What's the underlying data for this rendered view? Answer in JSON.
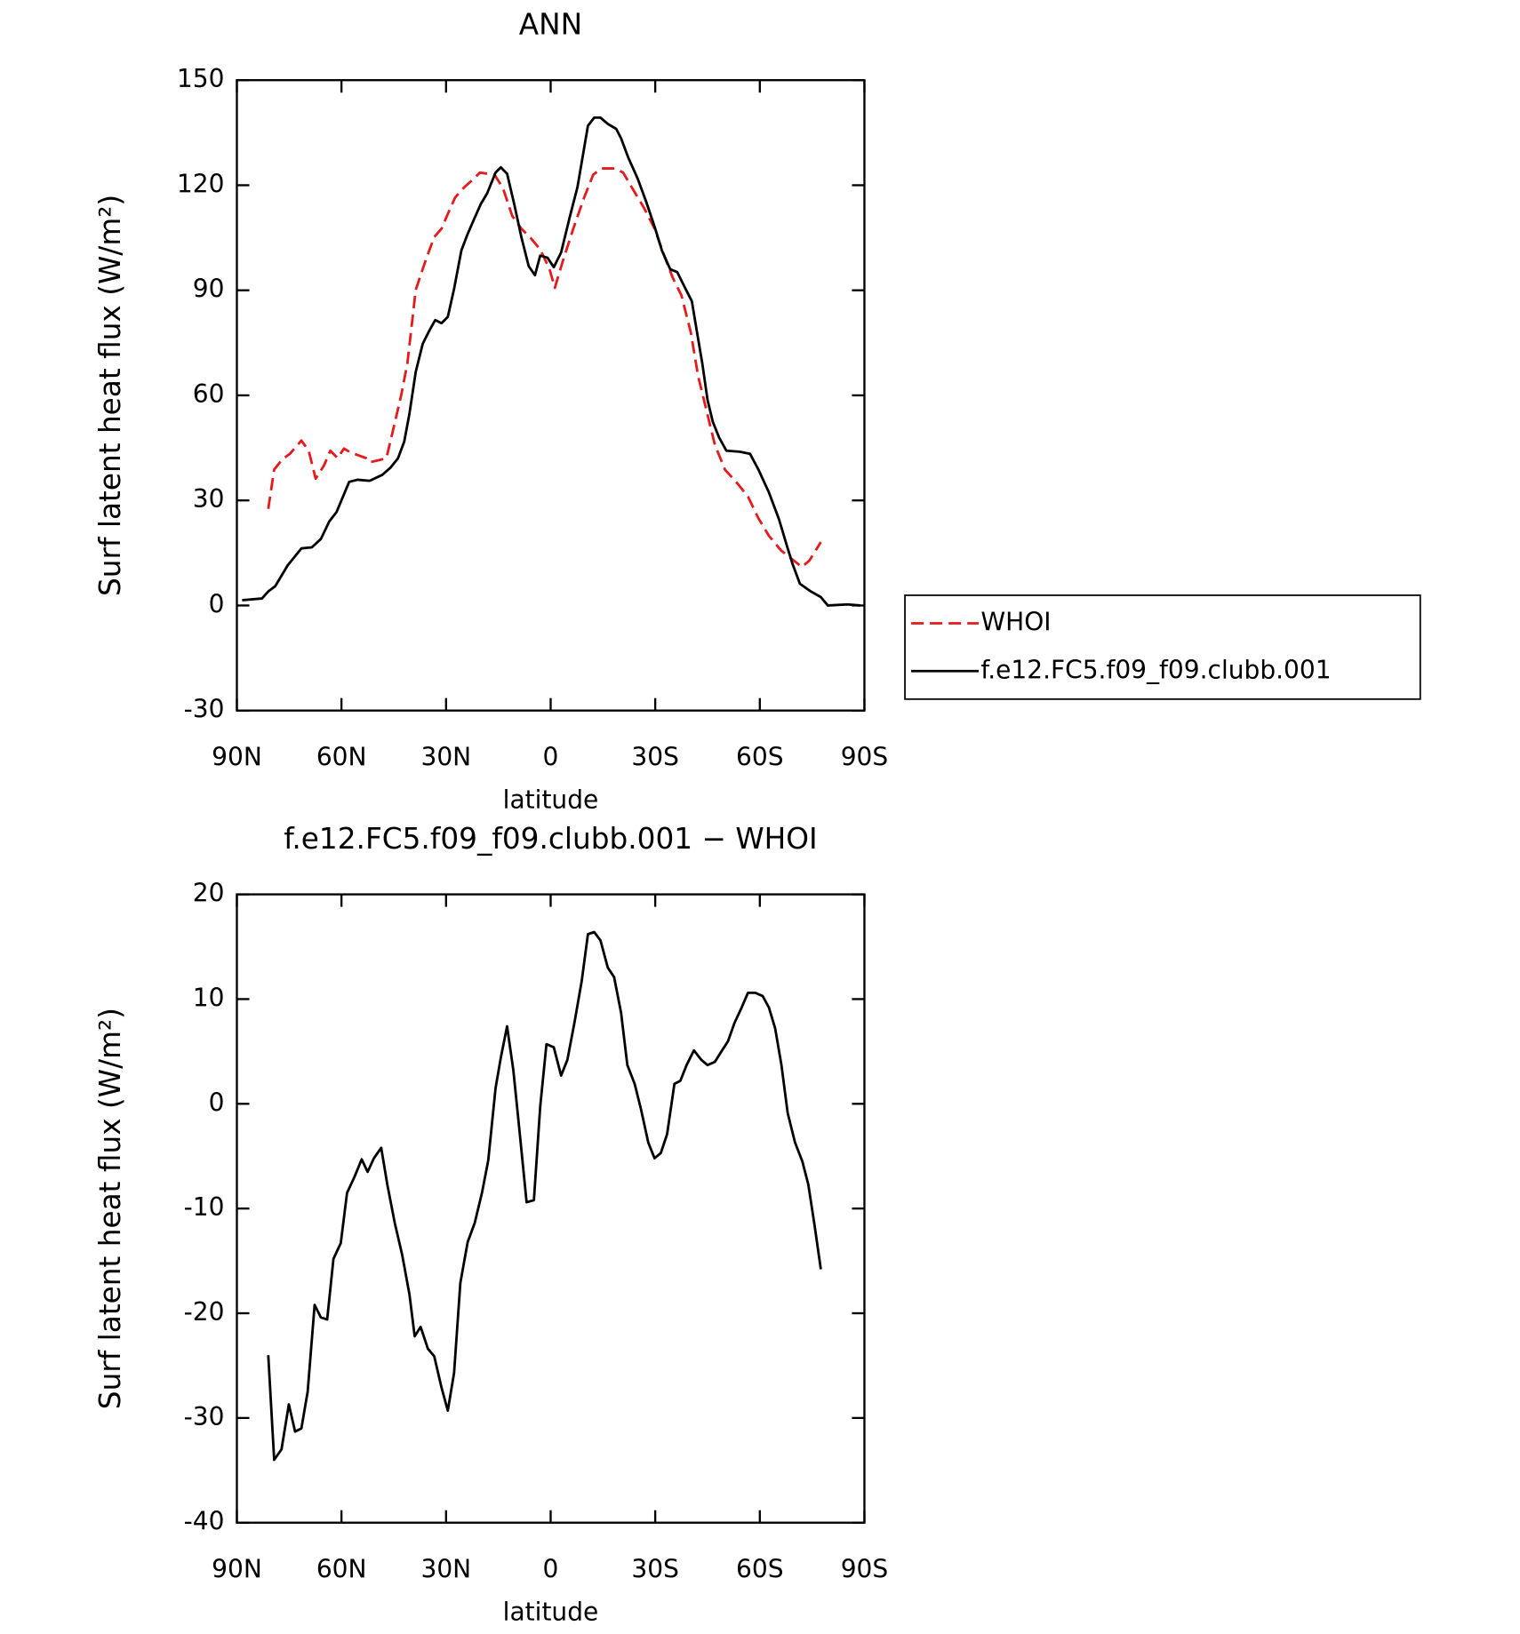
{
  "chart_data": [
    {
      "type": "line",
      "title": "ANN",
      "xlabel": "latitude",
      "ylabel": "Surf latent heat flux (W/m²)",
      "xlim": [
        90,
        -90
      ],
      "xticks": [
        {
          "value": 90,
          "label": "90N"
        },
        {
          "value": 60,
          "label": "60N"
        },
        {
          "value": 30,
          "label": "30N"
        },
        0,
        {
          "value": -30,
          "label": "30S"
        },
        {
          "value": -60,
          "label": "60S"
        },
        {
          "value": -90,
          "label": "90S"
        }
      ],
      "ylim": [
        -30,
        150
      ],
      "yticks": [
        -30,
        0,
        30,
        60,
        90,
        120,
        150
      ],
      "legend": "right",
      "series": [
        {
          "name": "WHOI",
          "color": "#e41a1c",
          "dashed": true,
          "x": [
            81,
            79.3,
            76.9,
            74.8,
            71.5,
            69.4,
            67.4,
            65,
            63.2,
            61.1,
            59.3,
            57.2,
            53,
            51.9,
            49.2,
            47.1,
            44.7,
            42.9,
            41.1,
            38.7,
            35.8,
            33.4,
            31.3,
            29.5,
            27.4,
            24.7,
            22.1,
            20.3,
            16.1,
            13.7,
            11,
            8.4,
            5.7,
            3,
            0.3,
            -1.2,
            -3.6,
            -6.5,
            -9.5,
            -12.2,
            -14.6,
            -18.5,
            -20.8,
            -23.2,
            -26.8,
            -29.8,
            -32.8,
            -35.1,
            -37.5,
            -40.2,
            -42.3,
            -44.7,
            -47.1,
            -50,
            -53.6,
            -56.6,
            -59.6,
            -62.6,
            -66.1,
            -69.1,
            -72.1,
            -74.2,
            -77.5
          ],
          "values": [
            27.6,
            38.8,
            41.8,
            43.3,
            47.1,
            44.2,
            36.2,
            40,
            44.2,
            42.1,
            44.8,
            43.6,
            42.1,
            40.9,
            41.5,
            42.1,
            52.2,
            59.9,
            69.1,
            90.1,
            98.7,
            105.2,
            107.6,
            111.8,
            116.5,
            119.5,
            121.8,
            123.6,
            123,
            119.2,
            111.2,
            107.6,
            104.9,
            101.7,
            96,
            90.7,
            98.7,
            107.6,
            116.2,
            123,
            124.8,
            124.8,
            123.6,
            119.5,
            113.5,
            107.6,
            99.3,
            93.4,
            88.6,
            78,
            65.5,
            55.7,
            45.9,
            38.8,
            34.8,
            31.1,
            24.9,
            19.9,
            15.7,
            13.3,
            11,
            12.8,
            18.1
          ]
        },
        {
          "name": "f.e12.FC5.f09_f09.clubb.001",
          "color": "#000000",
          "dashed": false,
          "x": [
            88.5,
            82.8,
            81,
            79,
            75.4,
            71.5,
            68.5,
            65.9,
            63.5,
            61.4,
            57.8,
            55.4,
            51.9,
            48.3,
            45.9,
            43.8,
            42,
            40.5,
            38.7,
            36.7,
            34.9,
            33.1,
            31.3,
            29.5,
            27.7,
            25.6,
            23.8,
            22.1,
            20,
            18.2,
            15.8,
            14.3,
            12.5,
            10.4,
            8.4,
            6.3,
            4.5,
            3,
            0.9,
            -0.9,
            -3,
            -5.4,
            -7.7,
            -10.7,
            -12.5,
            -14.3,
            -16.4,
            -18.8,
            -20.2,
            -22.3,
            -25,
            -27.4,
            -29.8,
            -31.9,
            -34.3,
            -36.3,
            -38.7,
            -40.5,
            -41.7,
            -43.5,
            -45,
            -46.5,
            -48.3,
            -50.4,
            -54.2,
            -57.2,
            -59.6,
            -62.6,
            -65.5,
            -67.9,
            -69.4,
            -71.5,
            -74.5,
            -77.5,
            -79.5,
            -85.2,
            -88.8
          ],
          "values": [
            1.5,
            2,
            4,
            5.5,
            11.5,
            16.3,
            16.6,
            19,
            24,
            26.7,
            35.3,
            35.9,
            35.6,
            37.3,
            39.4,
            42,
            46.8,
            54.8,
            66.7,
            74.7,
            78.3,
            81.5,
            80.6,
            82.4,
            90.4,
            101.4,
            106.1,
            110,
            114.7,
            117.7,
            123.6,
            125.1,
            123.3,
            114.4,
            105.2,
            96.9,
            94.3,
            99.9,
            99.3,
            96.6,
            100.8,
            110.6,
            119.5,
            137,
            139.3,
            139.3,
            137.5,
            136.1,
            133.4,
            127.8,
            121.8,
            115.3,
            108.2,
            101.4,
            96,
            95.2,
            90.4,
            86.9,
            79.7,
            69.1,
            58.7,
            52.5,
            48,
            44.2,
            43.9,
            43.3,
            38.8,
            32.3,
            24.6,
            16.6,
            11.8,
            6.2,
            4.1,
            2.4,
            0,
            0.3,
            0
          ]
        }
      ]
    },
    {
      "type": "line",
      "title": "f.e12.FC5.f09_f09.clubb.001 − WHOI",
      "xlabel": "latitude",
      "ylabel": "Surf latent heat flux (W/m²)",
      "xlim": [
        90,
        -90
      ],
      "xticks": [
        {
          "value": 90,
          "label": "90N"
        },
        {
          "value": 60,
          "label": "60N"
        },
        {
          "value": 30,
          "label": "30N"
        },
        0,
        {
          "value": -30,
          "label": "30S"
        },
        {
          "value": -60,
          "label": "60S"
        },
        {
          "value": -90,
          "label": "90S"
        }
      ],
      "ylim": [
        -40,
        20
      ],
      "yticks": [
        -40,
        -30,
        -20,
        -10,
        0,
        10,
        20
      ],
      "series": [
        {
          "color": "#000000",
          "dashed": false,
          "x": [
            81,
            79.3,
            77.2,
            75.1,
            73.3,
            71.5,
            69.7,
            67.7,
            65.9,
            64.1,
            62.3,
            60.2,
            58.4,
            56.3,
            54.2,
            52.5,
            50.7,
            48.6,
            46.8,
            44.7,
            42.6,
            40.5,
            39,
            37.3,
            35.2,
            33.4,
            31.3,
            29.5,
            27.7,
            25.9,
            23.8,
            21.8,
            19.7,
            17.9,
            15.8,
            14.3,
            12.5,
            10.7,
            8.9,
            6.9,
            4.8,
            3,
            1.2,
            -0.9,
            -3,
            -4.8,
            -6.8,
            -8.9,
            -10.7,
            -12.5,
            -14.3,
            -16.4,
            -18.2,
            -20.2,
            -22,
            -24.1,
            -25.9,
            -28,
            -29.8,
            -31.6,
            -33.4,
            -35.5,
            -37.2,
            -39,
            -41.1,
            -43.2,
            -45,
            -47.1,
            -48.8,
            -50.9,
            -52.7,
            -54.8,
            -56.6,
            -58.7,
            -60.8,
            -62.6,
            -64.4,
            -66.2,
            -68,
            -70.1,
            -72.2,
            -73.9,
            -75.7,
            -77.5
          ],
          "values": [
            -24,
            -34,
            -33,
            -28.7,
            -31.3,
            -31,
            -27.5,
            -19.2,
            -20.4,
            -20.6,
            -14.8,
            -13.3,
            -8.5,
            -7,
            -5.3,
            -6.5,
            -5.2,
            -4.2,
            -7.8,
            -11.4,
            -14.4,
            -18.2,
            -22.2,
            -21.3,
            -23.4,
            -24.1,
            -27.1,
            -29.3,
            -25.7,
            -17.1,
            -13.2,
            -11.4,
            -8.5,
            -5.4,
            1.5,
            4.4,
            7.4,
            3.2,
            -2.7,
            -9.4,
            -9.2,
            -0.3,
            5.7,
            5.4,
            2.7,
            4.2,
            7.7,
            11.7,
            16.2,
            16.4,
            15.6,
            13,
            12.1,
            8.7,
            3.7,
            1.9,
            -0.5,
            -3.7,
            -5.2,
            -4.7,
            -2.9,
            1.9,
            2.2,
            3.7,
            5.1,
            4.2,
            3.7,
            4,
            4.9,
            6,
            7.7,
            9.2,
            10.6,
            10.6,
            10.3,
            9.2,
            7.2,
            3.7,
            -0.9,
            -3.7,
            -5.5,
            -7.7,
            -11.6,
            -15.8
          ]
        }
      ]
    }
  ]
}
